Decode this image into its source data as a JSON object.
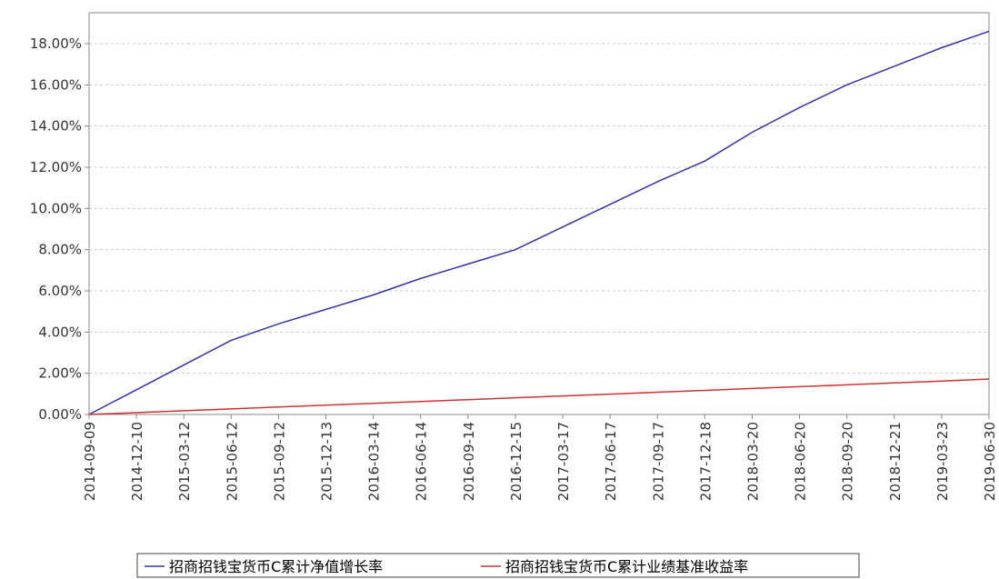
{
  "chart_data": {
    "type": "line",
    "title": "",
    "xlabel": "",
    "ylabel": "",
    "ylim": [
      0,
      0.195
    ],
    "grid": true,
    "legend_position": "bottom",
    "y_tick_labels": [
      "0.00%",
      "2.00%",
      "4.00%",
      "6.00%",
      "8.00%",
      "10.00%",
      "12.00%",
      "14.00%",
      "16.00%",
      "18.00%"
    ],
    "y_tick_values": [
      0,
      0.02,
      0.04,
      0.06,
      0.08,
      0.1,
      0.12,
      0.14,
      0.16,
      0.18
    ],
    "x_tick_labels": [
      "2014-09-09",
      "2014-12-10",
      "2015-03-12",
      "2015-06-12",
      "2015-09-12",
      "2015-12-13",
      "2016-03-14",
      "2016-06-14",
      "2016-09-14",
      "2016-12-15",
      "2017-03-17",
      "2017-06-17",
      "2017-09-17",
      "2017-12-18",
      "2018-03-20",
      "2018-06-20",
      "2018-09-20",
      "2018-12-21",
      "2019-03-23",
      "2019-06-30"
    ],
    "x": [
      "2014-09-09",
      "2014-12-10",
      "2015-03-12",
      "2015-06-12",
      "2015-09-12",
      "2015-12-13",
      "2016-03-14",
      "2016-06-14",
      "2016-09-14",
      "2016-12-15",
      "2017-03-17",
      "2017-06-17",
      "2017-09-17",
      "2017-12-18",
      "2018-03-20",
      "2018-06-20",
      "2018-09-20",
      "2018-12-21",
      "2019-03-23",
      "2019-06-30"
    ],
    "series": [
      {
        "name": "招商招钱宝货币C累计净值增长率",
        "color": "#3333aa",
        "values": [
          0.0,
          0.012,
          0.024,
          0.036,
          0.044,
          0.051,
          0.058,
          0.066,
          0.073,
          0.08,
          0.091,
          0.102,
          0.113,
          0.123,
          0.137,
          0.149,
          0.16,
          0.169,
          0.178,
          0.186
        ]
      },
      {
        "name": "招商招钱宝货币C累计业绩基准收益率",
        "color": "#cc3333",
        "values": [
          0.0,
          0.0009,
          0.0018,
          0.0027,
          0.0036,
          0.0045,
          0.0054,
          0.0063,
          0.0072,
          0.0081,
          0.009,
          0.0099,
          0.0108,
          0.0117,
          0.0126,
          0.0135,
          0.0144,
          0.0153,
          0.0162,
          0.0172
        ]
      }
    ]
  }
}
